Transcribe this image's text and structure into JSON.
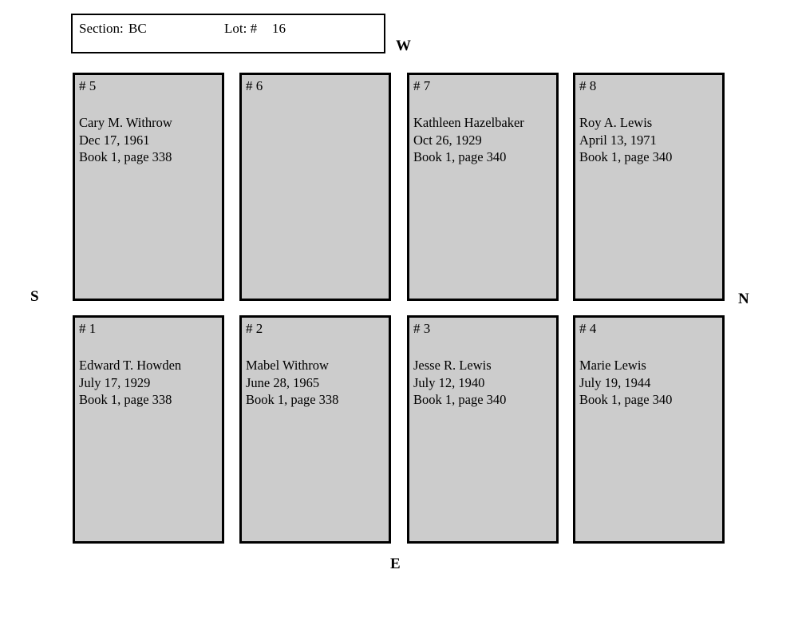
{
  "header": {
    "section_label": "Section:",
    "section_value": "BC",
    "lot_label": "Lot: #",
    "lot_value": "16"
  },
  "compass": {
    "west": "W",
    "south": "S",
    "north": "N",
    "east": "E"
  },
  "colors": {
    "plot_fill": "#cccccc",
    "plot_border": "#000000",
    "page_background": "#ffffff"
  },
  "plots": [
    {
      "number": "# 5",
      "lines": [
        "Cary M. Withrow",
        "Dec 17, 1961",
        "Book 1, page 338"
      ]
    },
    {
      "number": "# 6",
      "lines": []
    },
    {
      "number": "# 7",
      "lines": [
        "Kathleen Hazelbaker",
        "Oct 26, 1929",
        "Book 1, page 340"
      ]
    },
    {
      "number": "# 8",
      "lines": [
        "Roy A. Lewis",
        "April 13, 1971",
        "Book 1, page 340"
      ]
    },
    {
      "number": "# 1",
      "lines": [
        "Edward T. Howden",
        "July 17, 1929",
        "Book 1, page 338"
      ]
    },
    {
      "number": "# 2",
      "lines": [
        "Mabel Withrow",
        "June 28, 1965",
        "Book 1, page 338"
      ]
    },
    {
      "number": "# 3",
      "lines": [
        "Jesse R. Lewis",
        "July 12, 1940",
        "Book 1, page 340"
      ]
    },
    {
      "number": "# 4",
      "lines": [
        "Marie Lewis",
        "July 19, 1944",
        "Book 1, page 340"
      ]
    }
  ]
}
